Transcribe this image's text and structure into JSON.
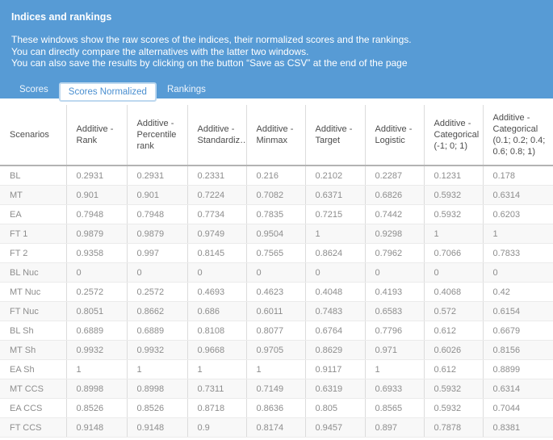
{
  "colors": {
    "header_bg": "#579bd5",
    "active_tab_text": "#4a8fd0",
    "active_tab_border": "#bdd8ef"
  },
  "header": {
    "title": "Indices and rankings",
    "description_lines": [
      "These windows show the raw scores of the indices, their normalized scores and the rankings.",
      "You can directly compare the alternatives with the latter two windows.",
      "You can also save the results by clicking on the button “Save as CSV” at the end of the page"
    ],
    "tabs": [
      {
        "label": "Scores",
        "active": false
      },
      {
        "label": "Scores Normalized",
        "active": true
      },
      {
        "label": "Rankings",
        "active": false
      }
    ]
  },
  "table": {
    "columns": [
      "Scenarios",
      "Additive - Rank",
      "Additive - Percentile rank",
      "Additive - Standardiz…",
      "Additive - Minmax",
      "Additive - Target",
      "Additive - Logistic",
      "Additive - Categorical (-1; 0; 1)",
      "Additive - Categorical (0.1; 0.2; 0.4; 0.6; 0.8; 1)"
    ],
    "rows": [
      {
        "scenario": "BL",
        "values": [
          "0.2931",
          "0.2931",
          "0.2331",
          "0.216",
          "0.2102",
          "0.2287",
          "0.1231",
          "0.178"
        ]
      },
      {
        "scenario": "MT",
        "values": [
          "0.901",
          "0.901",
          "0.7224",
          "0.7082",
          "0.6371",
          "0.6826",
          "0.5932",
          "0.6314"
        ]
      },
      {
        "scenario": "EA",
        "values": [
          "0.7948",
          "0.7948",
          "0.7734",
          "0.7835",
          "0.7215",
          "0.7442",
          "0.5932",
          "0.6203"
        ]
      },
      {
        "scenario": "FT 1",
        "values": [
          "0.9879",
          "0.9879",
          "0.9749",
          "0.9504",
          "1",
          "0.9298",
          "1",
          "1"
        ]
      },
      {
        "scenario": "FT 2",
        "values": [
          "0.9358",
          "0.997",
          "0.8145",
          "0.7565",
          "0.8624",
          "0.7962",
          "0.7066",
          "0.7833"
        ]
      },
      {
        "scenario": "BL Nuc",
        "values": [
          "0",
          "0",
          "0",
          "0",
          "0",
          "0",
          "0",
          "0"
        ]
      },
      {
        "scenario": "MT Nuc",
        "values": [
          "0.2572",
          "0.2572",
          "0.4693",
          "0.4623",
          "0.4048",
          "0.4193",
          "0.4068",
          "0.42"
        ]
      },
      {
        "scenario": "FT Nuc",
        "values": [
          "0.8051",
          "0.8662",
          "0.686",
          "0.6011",
          "0.7483",
          "0.6583",
          "0.572",
          "0.6154"
        ]
      },
      {
        "scenario": "BL Sh",
        "values": [
          "0.6889",
          "0.6889",
          "0.8108",
          "0.8077",
          "0.6764",
          "0.7796",
          "0.612",
          "0.6679"
        ]
      },
      {
        "scenario": "MT Sh",
        "values": [
          "0.9932",
          "0.9932",
          "0.9668",
          "0.9705",
          "0.8629",
          "0.971",
          "0.6026",
          "0.8156"
        ]
      },
      {
        "scenario": "EA Sh",
        "values": [
          "1",
          "1",
          "1",
          "1",
          "0.9117",
          "1",
          "0.612",
          "0.8899"
        ]
      },
      {
        "scenario": "MT CCS",
        "values": [
          "0.8998",
          "0.8998",
          "0.7311",
          "0.7149",
          "0.6319",
          "0.6933",
          "0.5932",
          "0.6314"
        ]
      },
      {
        "scenario": "EA CCS",
        "values": [
          "0.8526",
          "0.8526",
          "0.8718",
          "0.8636",
          "0.805",
          "0.8565",
          "0.5932",
          "0.7044"
        ]
      },
      {
        "scenario": "FT CCS",
        "values": [
          "0.9148",
          "0.9148",
          "0.9",
          "0.8174",
          "0.9457",
          "0.897",
          "0.7878",
          "0.8381"
        ]
      }
    ]
  }
}
